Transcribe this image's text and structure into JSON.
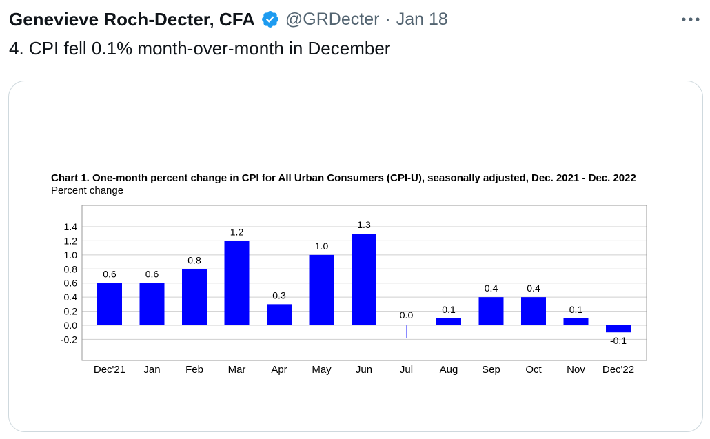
{
  "tweet": {
    "author_name": "Genevieve Roch-Decter, CFA",
    "handle": "@GRDecter",
    "separator": "·",
    "date": "Jan 18",
    "text": "4. CPI fell 0.1% month-over-month in December",
    "verified_icon": "verified-badge-icon",
    "more_icon": "more-options-icon"
  },
  "colors": {
    "verified": "#1d9bf0",
    "secondary_text": "#536471",
    "bar": "#0000ff",
    "card_border": "#cfd9de"
  },
  "chart_data": {
    "type": "bar",
    "title": "Chart 1. One-month percent change in CPI for All Urban Consumers (CPI-U), seasonally adjusted, Dec. 2021 - Dec. 2022",
    "ylabel": "Percent change",
    "xlabel": "",
    "categories": [
      "Dec'21",
      "Jan",
      "Feb",
      "Mar",
      "Apr",
      "May",
      "Jun",
      "Jul",
      "Aug",
      "Sep",
      "Oct",
      "Nov",
      "Dec'22"
    ],
    "values": [
      0.6,
      0.6,
      0.8,
      1.2,
      0.3,
      1.0,
      1.3,
      0.0,
      0.1,
      0.4,
      0.4,
      0.1,
      -0.1
    ],
    "value_labels": [
      "0.6",
      "0.6",
      "0.8",
      "1.2",
      "0.3",
      "1.0",
      "1.3",
      "0.0",
      "0.1",
      "0.4",
      "0.4",
      "0.1",
      "-0.1"
    ],
    "yticks": [
      "1.4",
      "1.2",
      "1.0",
      "0.8",
      "0.6",
      "0.4",
      "0.2",
      "0.0",
      "-0.2"
    ],
    "ylim": [
      -0.45,
      1.65
    ],
    "grid": true,
    "legend": "none"
  }
}
